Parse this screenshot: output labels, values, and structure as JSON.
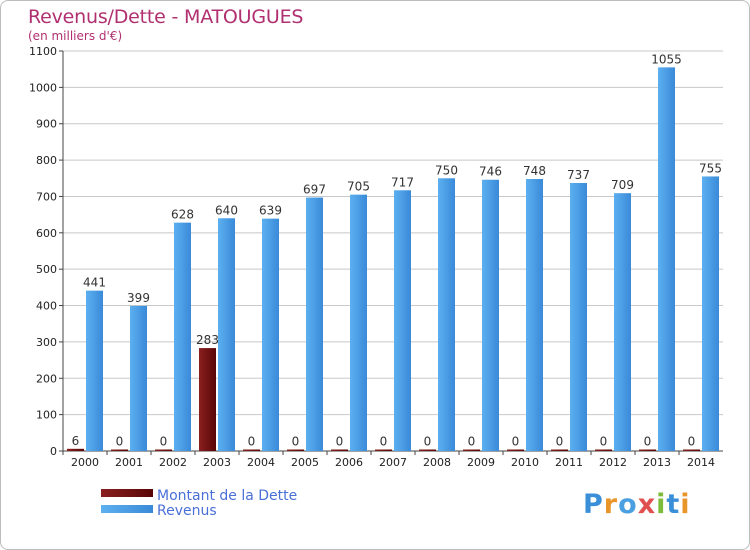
{
  "header": {
    "title": "Revenus/Dette - MATOUGUES",
    "subtitle": "(en milliers d'€)"
  },
  "logo": {
    "text": "Proxiti",
    "letter_colors": [
      "#3a8fd8",
      "#e8952a",
      "#4aa0e0",
      "#e05050",
      "#7dbb3a",
      "#3a8fd8",
      "#e8952a"
    ]
  },
  "colors": {
    "dette": "#6b0a0a",
    "revenus": "#4a9fe6",
    "revenus_dark": "#2f7fc8",
    "gridline": "#c8c8c8",
    "title": "#b03070"
  },
  "chart_data": {
    "type": "bar",
    "title": "Revenus/Dette - MATOUGUES",
    "subtitle": "(en milliers d'€)",
    "categories": [
      "2000",
      "2001",
      "2002",
      "2003",
      "2004",
      "2005",
      "2006",
      "2007",
      "2008",
      "2009",
      "2010",
      "2011",
      "2012",
      "2013",
      "2014"
    ],
    "series": [
      {
        "name": "Montant de la Dette",
        "values": [
          6,
          0,
          0,
          283,
          0,
          0,
          0,
          0,
          0,
          0,
          0,
          0,
          0,
          0,
          0
        ]
      },
      {
        "name": "Revenus",
        "values": [
          441,
          399,
          628,
          640,
          639,
          697,
          705,
          717,
          750,
          746,
          748,
          737,
          709,
          1055,
          755
        ]
      }
    ],
    "ylim": [
      0,
      1100
    ],
    "yticks": [
      0,
      100,
      200,
      300,
      400,
      500,
      600,
      700,
      800,
      900,
      1000,
      1100
    ],
    "grid": true,
    "legend": "bottom-left"
  }
}
